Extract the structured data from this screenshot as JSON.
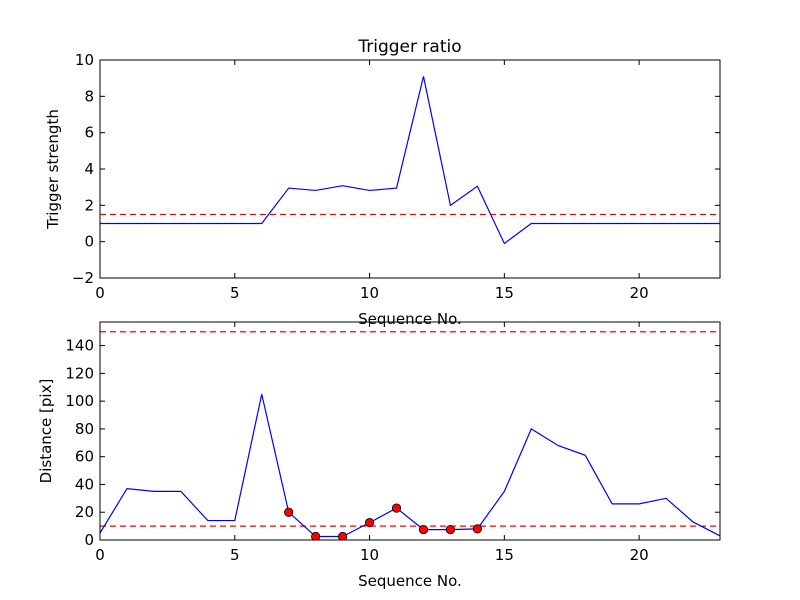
{
  "chart_data": [
    {
      "type": "line",
      "title": "Trigger ratio",
      "xlabel": "Sequence No.",
      "ylabel": "Trigger strength",
      "xlim": [
        0,
        23
      ],
      "ylim": [
        -2,
        10
      ],
      "xticks": [
        0,
        5,
        10,
        15,
        20
      ],
      "yticks": [
        -2,
        0,
        2,
        4,
        6,
        8,
        10
      ],
      "grid": false,
      "series": [
        {
          "color": "#0000ff",
          "x": [
            0,
            1,
            2,
            3,
            4,
            5,
            6,
            7,
            8,
            9,
            10,
            11,
            12,
            13,
            14,
            15,
            16,
            17,
            18,
            19,
            20,
            21,
            22,
            23
          ],
          "values": [
            1,
            1,
            1,
            1,
            1,
            1,
            1,
            2.95,
            2.82,
            3.08,
            2.82,
            2.95,
            9.1,
            2.0,
            3.05,
            -0.1,
            1,
            1,
            1,
            1,
            1,
            1,
            1,
            1
          ]
        }
      ],
      "hlines": [
        {
          "y": 1.5,
          "color": "#ff0000",
          "style": "dashed"
        }
      ]
    },
    {
      "type": "line",
      "title": "",
      "xlabel": "Sequence No.",
      "ylabel": "Distance [pix]",
      "xlim": [
        0,
        23
      ],
      "ylim": [
        0,
        157
      ],
      "xticks": [
        0,
        5,
        10,
        15,
        20
      ],
      "yticks": [
        0,
        20,
        40,
        60,
        80,
        100,
        120,
        140
      ],
      "grid": false,
      "series": [
        {
          "color": "#0000ff",
          "x": [
            0,
            1,
            2,
            3,
            4,
            5,
            6,
            7,
            8,
            9,
            10,
            11,
            12,
            13,
            14,
            15,
            16,
            17,
            18,
            19,
            20,
            21,
            22,
            23
          ],
          "values": [
            5,
            37,
            35,
            35,
            14,
            14,
            105,
            20,
            2.5,
            2.5,
            12.5,
            23,
            7.5,
            7.5,
            8,
            35,
            80,
            68,
            61,
            26,
            26,
            30,
            13,
            3
          ]
        }
      ],
      "markers": {
        "color": "#ff0000",
        "x": [
          7,
          8,
          9,
          10,
          11,
          12,
          13,
          14
        ],
        "values": [
          20,
          2.5,
          2.5,
          12.5,
          23,
          7.5,
          7.5,
          8
        ]
      },
      "hlines": [
        {
          "y": 150,
          "color": "#ff0000",
          "style": "dashed"
        },
        {
          "y": 10,
          "color": "#ff0000",
          "style": "dashed"
        }
      ]
    }
  ]
}
